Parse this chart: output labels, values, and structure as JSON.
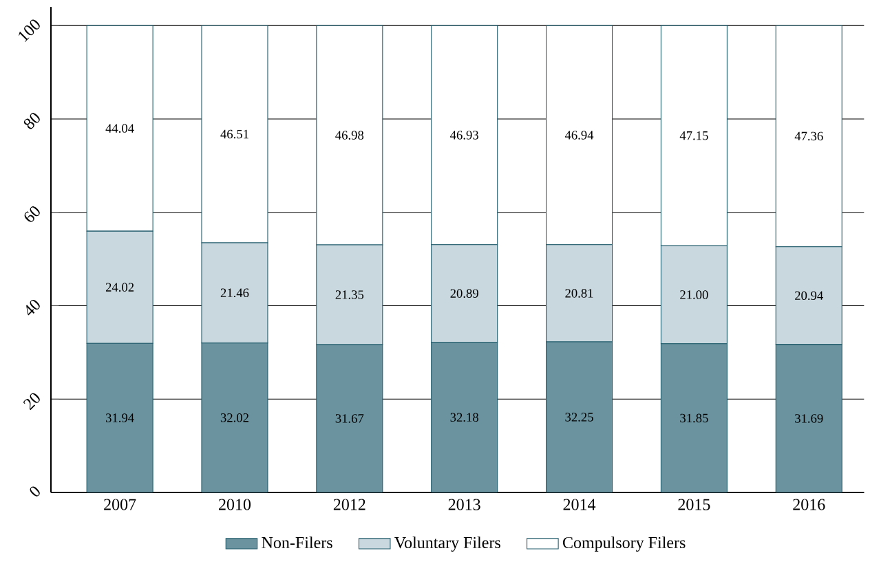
{
  "chart_data": {
    "type": "bar",
    "stacked": true,
    "categories": [
      "2007",
      "2010",
      "2012",
      "2013",
      "2014",
      "2015",
      "2016"
    ],
    "series": [
      {
        "name": "Non-Filers",
        "color": "#6a939f",
        "values": [
          31.94,
          32.02,
          31.67,
          32.18,
          32.25,
          31.85,
          31.69
        ],
        "value_labels": [
          "31.94",
          "32.02",
          "31.67",
          "32.18",
          "32.25",
          "31.85",
          "31.69"
        ]
      },
      {
        "name": "Voluntary Filers",
        "color": "#c9d8de",
        "values": [
          24.02,
          21.46,
          21.35,
          20.89,
          20.81,
          21.0,
          20.94
        ],
        "value_labels": [
          "24.02",
          "21.46",
          "21.35",
          "20.89",
          "20.81",
          "21.00",
          "20.94"
        ]
      },
      {
        "name": "Compulsory Filers",
        "color": "#ffffff",
        "values": [
          44.04,
          46.51,
          46.98,
          46.93,
          46.94,
          47.15,
          47.36
        ],
        "value_labels": [
          "44.04",
          "46.51",
          "46.98",
          "46.93",
          "46.94",
          "47.15",
          "47.36"
        ]
      }
    ],
    "ylim": [
      0,
      104
    ],
    "yticks": [
      0,
      20,
      40,
      60,
      80,
      100
    ],
    "grid": "y",
    "legend": "bottom"
  }
}
